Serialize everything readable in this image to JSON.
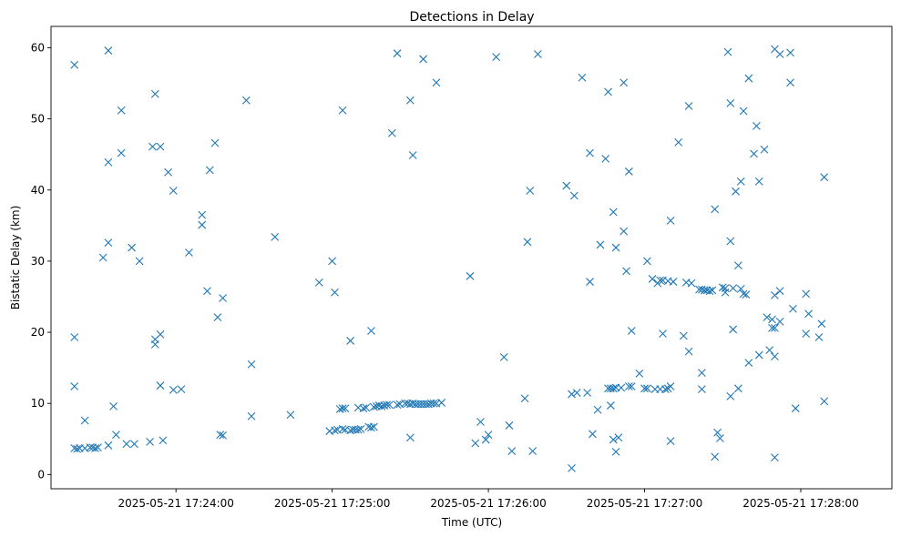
{
  "chart_data": {
    "type": "scatter",
    "title": "Detections in Delay",
    "xlabel": "Time (UTC)",
    "ylabel": "Bistatic Delay (km)",
    "x_axis_type": "time",
    "xlim": [
      "2025-05-21 17:23:12",
      "2025-05-21 17:28:35"
    ],
    "ylim": [
      -2,
      63
    ],
    "x_ticks": [
      "2025-05-21 17:24:00",
      "2025-05-21 17:25:00",
      "2025-05-21 17:26:00",
      "2025-05-21 17:27:00",
      "2025-05-21 17:28:00"
    ],
    "y_ticks": [
      0,
      10,
      20,
      30,
      40,
      50,
      60
    ],
    "grid": false,
    "marker": "x",
    "color": "#1f77b4",
    "series": [
      {
        "points": [
          [
            "2025-05-21 17:23:21",
            57.6
          ],
          [
            "2025-05-21 17:23:21",
            19.3
          ],
          [
            "2025-05-21 17:23:21",
            12.4
          ],
          [
            "2025-05-21 17:23:21",
            3.7
          ],
          [
            "2025-05-21 17:23:22",
            3.6
          ],
          [
            "2025-05-21 17:23:23",
            3.7
          ],
          [
            "2025-05-21 17:23:25",
            7.6
          ],
          [
            "2025-05-21 17:23:25",
            3.7
          ],
          [
            "2025-05-21 17:23:27",
            3.8
          ],
          [
            "2025-05-21 17:23:28",
            3.8
          ],
          [
            "2025-05-21 17:23:29",
            3.7
          ],
          [
            "2025-05-21 17:23:30",
            3.8
          ],
          [
            "2025-05-21 17:23:32",
            30.5
          ],
          [
            "2025-05-21 17:23:34",
            32.6
          ],
          [
            "2025-05-21 17:23:34",
            59.6
          ],
          [
            "2025-05-21 17:23:34",
            43.9
          ],
          [
            "2025-05-21 17:23:34",
            4.1
          ],
          [
            "2025-05-21 17:23:36",
            9.6
          ],
          [
            "2025-05-21 17:23:37",
            5.6
          ],
          [
            "2025-05-21 17:23:39",
            51.2
          ],
          [
            "2025-05-21 17:23:39",
            45.2
          ],
          [
            "2025-05-21 17:23:41",
            4.3
          ],
          [
            "2025-05-21 17:23:43",
            31.9
          ],
          [
            "2025-05-21 17:23:44",
            4.3
          ],
          [
            "2025-05-21 17:23:46",
            30.0
          ],
          [
            "2025-05-21 17:23:50",
            4.6
          ],
          [
            "2025-05-21 17:23:51",
            46.1
          ],
          [
            "2025-05-21 17:23:52",
            53.5
          ],
          [
            "2025-05-21 17:23:52",
            19.0
          ],
          [
            "2025-05-21 17:23:52",
            18.3
          ],
          [
            "2025-05-21 17:23:54",
            46.1
          ],
          [
            "2025-05-21 17:23:54",
            19.7
          ],
          [
            "2025-05-21 17:23:54",
            12.5
          ],
          [
            "2025-05-21 17:23:55",
            4.8
          ],
          [
            "2025-05-21 17:23:57",
            42.5
          ],
          [
            "2025-05-21 17:23:59",
            39.9
          ],
          [
            "2025-05-21 17:23:59",
            11.9
          ],
          [
            "2025-05-21 17:24:02",
            12.0
          ],
          [
            "2025-05-21 17:24:05",
            31.2
          ],
          [
            "2025-05-21 17:24:10",
            36.5
          ],
          [
            "2025-05-21 17:24:10",
            35.1
          ],
          [
            "2025-05-21 17:24:12",
            25.8
          ],
          [
            "2025-05-21 17:24:13",
            42.8
          ],
          [
            "2025-05-21 17:24:15",
            46.6
          ],
          [
            "2025-05-21 17:24:16",
            22.1
          ],
          [
            "2025-05-21 17:24:17",
            5.6
          ],
          [
            "2025-05-21 17:24:18",
            24.8
          ],
          [
            "2025-05-21 17:24:18",
            5.5
          ],
          [
            "2025-05-21 17:24:27",
            52.6
          ],
          [
            "2025-05-21 17:24:29",
            15.5
          ],
          [
            "2025-05-21 17:24:29",
            8.2
          ],
          [
            "2025-05-21 17:24:38",
            33.4
          ],
          [
            "2025-05-21 17:24:44",
            8.4
          ],
          [
            "2025-05-21 17:24:55",
            27.0
          ],
          [
            "2025-05-21 17:24:59",
            6.1
          ],
          [
            "2025-05-21 17:25:00",
            30.0
          ],
          [
            "2025-05-21 17:25:01",
            25.6
          ],
          [
            "2025-05-21 17:25:01",
            6.2
          ],
          [
            "2025-05-21 17:25:02",
            6.3
          ],
          [
            "2025-05-21 17:25:03",
            9.2
          ],
          [
            "2025-05-21 17:25:04",
            51.2
          ],
          [
            "2025-05-21 17:25:04",
            9.3
          ],
          [
            "2025-05-21 17:25:04",
            6.4
          ],
          [
            "2025-05-21 17:25:05",
            9.3
          ],
          [
            "2025-05-21 17:25:05",
            6.3
          ],
          [
            "2025-05-21 17:25:07",
            18.8
          ],
          [
            "2025-05-21 17:25:07",
            6.2
          ],
          [
            "2025-05-21 17:25:08",
            6.3
          ],
          [
            "2025-05-21 17:25:09",
            6.3
          ],
          [
            "2025-05-21 17:25:10",
            9.4
          ],
          [
            "2025-05-21 17:25:10",
            6.3
          ],
          [
            "2025-05-21 17:25:11",
            6.4
          ],
          [
            "2025-05-21 17:25:12",
            9.3
          ],
          [
            "2025-05-21 17:25:13",
            9.4
          ],
          [
            "2025-05-21 17:25:14",
            6.7
          ],
          [
            "2025-05-21 17:25:15",
            20.2
          ],
          [
            "2025-05-21 17:25:15",
            6.6
          ],
          [
            "2025-05-21 17:25:16",
            9.5
          ],
          [
            "2025-05-21 17:25:16",
            6.7
          ],
          [
            "2025-05-21 17:25:17",
            9.6
          ],
          [
            "2025-05-21 17:25:18",
            9.7
          ],
          [
            "2025-05-21 17:25:19",
            9.6
          ],
          [
            "2025-05-21 17:25:20",
            9.7
          ],
          [
            "2025-05-21 17:25:21",
            9.8
          ],
          [
            "2025-05-21 17:25:22",
            9.8
          ],
          [
            "2025-05-21 17:25:23",
            48.0
          ],
          [
            "2025-05-21 17:25:25",
            59.2
          ],
          [
            "2025-05-21 17:25:25",
            9.8
          ],
          [
            "2025-05-21 17:25:26",
            9.9
          ],
          [
            "2025-05-21 17:25:28",
            10.0
          ],
          [
            "2025-05-21 17:25:29",
            10.0
          ],
          [
            "2025-05-21 17:25:30",
            52.6
          ],
          [
            "2025-05-21 17:25:30",
            9.9
          ],
          [
            "2025-05-21 17:25:30",
            5.2
          ],
          [
            "2025-05-21 17:25:31",
            44.9
          ],
          [
            "2025-05-21 17:25:31",
            10.0
          ],
          [
            "2025-05-21 17:25:32",
            9.9
          ],
          [
            "2025-05-21 17:25:33",
            9.9
          ],
          [
            "2025-05-21 17:25:34",
            9.9
          ],
          [
            "2025-05-21 17:25:35",
            58.4
          ],
          [
            "2025-05-21 17:25:35",
            9.9
          ],
          [
            "2025-05-21 17:25:36",
            9.9
          ],
          [
            "2025-05-21 17:25:37",
            9.9
          ],
          [
            "2025-05-21 17:25:38",
            10.0
          ],
          [
            "2025-05-21 17:25:39",
            10.0
          ],
          [
            "2025-05-21 17:25:40",
            55.1
          ],
          [
            "2025-05-21 17:25:40",
            10.0
          ],
          [
            "2025-05-21 17:25:42",
            10.1
          ],
          [
            "2025-05-21 17:25:53",
            27.9
          ],
          [
            "2025-05-21 17:25:55",
            4.4
          ],
          [
            "2025-05-21 17:25:57",
            7.4
          ],
          [
            "2025-05-21 17:25:59",
            4.9
          ],
          [
            "2025-05-21 17:26:00",
            5.6
          ],
          [
            "2025-05-21 17:26:03",
            58.7
          ],
          [
            "2025-05-21 17:26:06",
            16.5
          ],
          [
            "2025-05-21 17:26:08",
            6.9
          ],
          [
            "2025-05-21 17:26:09",
            3.3
          ],
          [
            "2025-05-21 17:26:14",
            10.7
          ],
          [
            "2025-05-21 17:26:15",
            32.7
          ],
          [
            "2025-05-21 17:26:16",
            39.9
          ],
          [
            "2025-05-21 17:26:17",
            3.3
          ],
          [
            "2025-05-21 17:26:19",
            59.1
          ],
          [
            "2025-05-21 17:26:30",
            40.6
          ],
          [
            "2025-05-21 17:26:32",
            11.3
          ],
          [
            "2025-05-21 17:26:32",
            0.9
          ],
          [
            "2025-05-21 17:26:33",
            39.2
          ],
          [
            "2025-05-21 17:26:34",
            11.5
          ],
          [
            "2025-05-21 17:26:36",
            55.8
          ],
          [
            "2025-05-21 17:26:38",
            11.5
          ],
          [
            "2025-05-21 17:26:39",
            45.2
          ],
          [
            "2025-05-21 17:26:39",
            27.1
          ],
          [
            "2025-05-21 17:26:40",
            5.7
          ],
          [
            "2025-05-21 17:26:42",
            9.1
          ],
          [
            "2025-05-21 17:26:43",
            32.3
          ],
          [
            "2025-05-21 17:26:45",
            44.4
          ],
          [
            "2025-05-21 17:26:46",
            53.8
          ],
          [
            "2025-05-21 17:26:46",
            12.1
          ],
          [
            "2025-05-21 17:26:47",
            9.7
          ],
          [
            "2025-05-21 17:26:47",
            12.1
          ],
          [
            "2025-05-21 17:26:48",
            36.9
          ],
          [
            "2025-05-21 17:26:48",
            12.1
          ],
          [
            "2025-05-21 17:26:48",
            4.9
          ],
          [
            "2025-05-21 17:26:49",
            31.9
          ],
          [
            "2025-05-21 17:26:49",
            12.2
          ],
          [
            "2025-05-21 17:26:49",
            3.2
          ],
          [
            "2025-05-21 17:26:50",
            5.2
          ],
          [
            "2025-05-21 17:26:51",
            12.2
          ],
          [
            "2025-05-21 17:26:52",
            34.2
          ],
          [
            "2025-05-21 17:26:52",
            55.1
          ],
          [
            "2025-05-21 17:26:53",
            28.6
          ],
          [
            "2025-05-21 17:26:54",
            42.6
          ],
          [
            "2025-05-21 17:26:54",
            12.4
          ],
          [
            "2025-05-21 17:26:55",
            12.4
          ],
          [
            "2025-05-21 17:26:55",
            20.2
          ],
          [
            "2025-05-21 17:26:58",
            14.2
          ],
          [
            "2025-05-21 17:27:00",
            12.1
          ],
          [
            "2025-05-21 17:27:01",
            30.0
          ],
          [
            "2025-05-21 17:27:01",
            12.1
          ],
          [
            "2025-05-21 17:27:03",
            27.5
          ],
          [
            "2025-05-21 17:27:04",
            12.0
          ],
          [
            "2025-05-21 17:27:05",
            26.9
          ],
          [
            "2025-05-21 17:27:06",
            27.3
          ],
          [
            "2025-05-21 17:27:06",
            12.0
          ],
          [
            "2025-05-21 17:27:07",
            19.8
          ],
          [
            "2025-05-21 17:27:07",
            27.3
          ],
          [
            "2025-05-21 17:27:08",
            12.0
          ],
          [
            "2025-05-21 17:27:09",
            27.2
          ],
          [
            "2025-05-21 17:27:09",
            12.1
          ],
          [
            "2025-05-21 17:27:10",
            35.7
          ],
          [
            "2025-05-21 17:27:10",
            12.4
          ],
          [
            "2025-05-21 17:27:10",
            4.7
          ],
          [
            "2025-05-21 17:27:11",
            27.1
          ],
          [
            "2025-05-21 17:27:13",
            46.7
          ],
          [
            "2025-05-21 17:27:15",
            19.5
          ],
          [
            "2025-05-21 17:27:16",
            27.0
          ],
          [
            "2025-05-21 17:27:17",
            51.8
          ],
          [
            "2025-05-21 17:27:17",
            17.3
          ],
          [
            "2025-05-21 17:27:18",
            26.9
          ],
          [
            "2025-05-21 17:27:21",
            26.0
          ],
          [
            "2025-05-21 17:27:22",
            14.3
          ],
          [
            "2025-05-21 17:27:22",
            26.0
          ],
          [
            "2025-05-21 17:27:22",
            12.0
          ],
          [
            "2025-05-21 17:27:23",
            25.9
          ],
          [
            "2025-05-21 17:27:24",
            25.9
          ],
          [
            "2025-05-21 17:27:25",
            25.8
          ],
          [
            "2025-05-21 17:27:26",
            25.9
          ],
          [
            "2025-05-21 17:27:27",
            37.3
          ],
          [
            "2025-05-21 17:27:27",
            2.5
          ],
          [
            "2025-05-21 17:27:28",
            5.9
          ],
          [
            "2025-05-21 17:27:29",
            5.1
          ],
          [
            "2025-05-21 17:27:30",
            26.3
          ],
          [
            "2025-05-21 17:27:31",
            26.2
          ],
          [
            "2025-05-21 17:27:31",
            25.6
          ],
          [
            "2025-05-21 17:27:32",
            59.4
          ],
          [
            "2025-05-21 17:27:33",
            52.2
          ],
          [
            "2025-05-21 17:27:33",
            32.8
          ],
          [
            "2025-05-21 17:27:33",
            11.0
          ],
          [
            "2025-05-21 17:27:34",
            26.2
          ],
          [
            "2025-05-21 17:27:34",
            20.4
          ],
          [
            "2025-05-21 17:27:35",
            39.8
          ],
          [
            "2025-05-21 17:27:36",
            29.4
          ],
          [
            "2025-05-21 17:27:36",
            12.1
          ],
          [
            "2025-05-21 17:27:37",
            41.2
          ],
          [
            "2025-05-21 17:27:37",
            26.1
          ],
          [
            "2025-05-21 17:27:38",
            51.1
          ],
          [
            "2025-05-21 17:27:38",
            25.4
          ],
          [
            "2025-05-21 17:27:39",
            25.3
          ],
          [
            "2025-05-21 17:27:40",
            55.7
          ],
          [
            "2025-05-21 17:27:40",
            15.7
          ],
          [
            "2025-05-21 17:27:42",
            45.1
          ],
          [
            "2025-05-21 17:27:43",
            49.0
          ],
          [
            "2025-05-21 17:27:44",
            41.2
          ],
          [
            "2025-05-21 17:27:44",
            16.8
          ],
          [
            "2025-05-21 17:27:46",
            45.7
          ],
          [
            "2025-05-21 17:27:47",
            22.1
          ],
          [
            "2025-05-21 17:27:48",
            17.5
          ],
          [
            "2025-05-21 17:27:49",
            21.8
          ],
          [
            "2025-05-21 17:27:49",
            20.6
          ],
          [
            "2025-05-21 17:27:50",
            59.8
          ],
          [
            "2025-05-21 17:27:50",
            25.2
          ],
          [
            "2025-05-21 17:27:50",
            20.6
          ],
          [
            "2025-05-21 17:27:50",
            16.6
          ],
          [
            "2025-05-21 17:27:50",
            2.4
          ],
          [
            "2025-05-21 17:27:52",
            59.1
          ],
          [
            "2025-05-21 17:27:52",
            25.8
          ],
          [
            "2025-05-21 17:27:52",
            21.5
          ],
          [
            "2025-05-21 17:27:56",
            59.3
          ],
          [
            "2025-05-21 17:27:56",
            55.1
          ],
          [
            "2025-05-21 17:27:57",
            23.3
          ],
          [
            "2025-05-21 17:27:58",
            9.3
          ],
          [
            "2025-05-21 17:28:02",
            25.4
          ],
          [
            "2025-05-21 17:28:02",
            19.8
          ],
          [
            "2025-05-21 17:28:03",
            22.6
          ],
          [
            "2025-05-21 17:28:07",
            19.3
          ],
          [
            "2025-05-21 17:28:08",
            21.2
          ],
          [
            "2025-05-21 17:28:09",
            41.8
          ],
          [
            "2025-05-21 17:28:09",
            10.3
          ]
        ]
      }
    ]
  }
}
